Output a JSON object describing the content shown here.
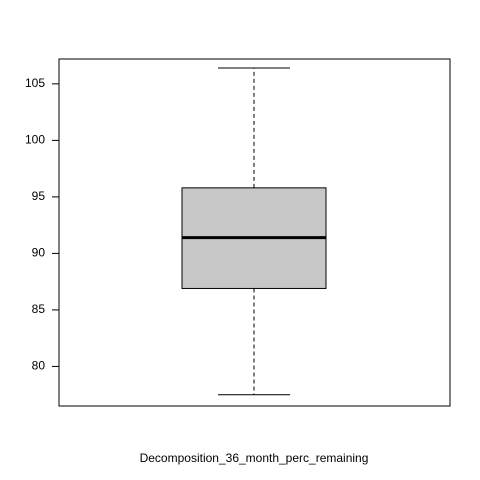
{
  "chart_data": {
    "type": "boxplot",
    "xlabel": "Decomposition_36_month_perc_remaining",
    "ylabel": "",
    "title": "",
    "ylim": [
      76.5,
      107.2
    ],
    "yticks": [
      80,
      85,
      90,
      95,
      100,
      105
    ],
    "grid": false,
    "box": {
      "whisker_low": 77.5,
      "q1": 86.9,
      "median": 91.4,
      "q3": 95.8,
      "whisker_high": 106.4
    },
    "colors": {
      "box_fill": "#c8c8c8",
      "stroke": "#000000"
    }
  }
}
